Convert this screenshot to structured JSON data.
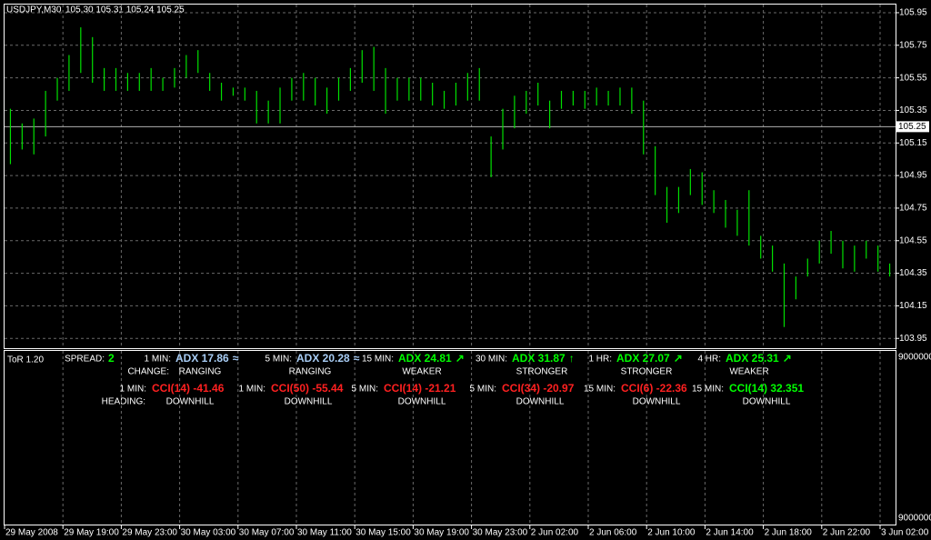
{
  "window": {
    "symbol": "USDJPY,M30",
    "quote": "105.30 105.31 105.24 105.25"
  },
  "chart_data": {
    "type": "bar",
    "color": "#00e000",
    "grid": true,
    "high": [
      105.36,
      105.27,
      105.3,
      105.47,
      105.55,
      105.69,
      105.86,
      105.8,
      105.61,
      105.61,
      105.58,
      105.58,
      105.61,
      105.55,
      105.61,
      105.69,
      105.72,
      105.58,
      105.52,
      105.49,
      105.49,
      105.47,
      105.41,
      105.49,
      105.55,
      105.58,
      105.55,
      105.49,
      105.55,
      105.61,
      105.72,
      105.74,
      105.61,
      105.55,
      105.55,
      105.55,
      105.52,
      105.47,
      105.52,
      105.58,
      105.61,
      105.19,
      105.36,
      105.44,
      105.47,
      105.52,
      105.41,
      105.47,
      105.47,
      105.47,
      105.49,
      105.47,
      105.49,
      105.49,
      105.41,
      105.13,
      104.88,
      104.88,
      104.99,
      104.97,
      104.86,
      104.8,
      104.74,
      104.86,
      104.58,
      104.52,
      104.41,
      104.33,
      104.44,
      104.55,
      104.61,
      104.55,
      104.52,
      104.55,
      104.52,
      104.41
    ],
    "low": [
      105.02,
      105.11,
      105.08,
      105.19,
      105.41,
      105.47,
      105.58,
      105.52,
      105.47,
      105.47,
      105.47,
      105.47,
      105.47,
      105.47,
      105.49,
      105.55,
      105.58,
      105.47,
      105.41,
      105.44,
      105.41,
      105.27,
      105.27,
      105.27,
      105.41,
      105.41,
      105.38,
      105.33,
      105.41,
      105.47,
      105.52,
      105.47,
      105.33,
      105.41,
      105.41,
      105.41,
      105.38,
      105.36,
      105.38,
      105.41,
      105.41,
      104.94,
      105.11,
      105.24,
      105.33,
      105.38,
      105.24,
      105.36,
      105.38,
      105.36,
      105.38,
      105.38,
      105.38,
      105.33,
      105.08,
      104.83,
      104.66,
      104.72,
      104.83,
      104.77,
      104.72,
      104.63,
      104.58,
      104.52,
      104.44,
      104.36,
      104.02,
      104.19,
      104.33,
      104.41,
      104.47,
      104.38,
      104.36,
      104.44,
      104.36,
      104.33
    ],
    "ylim": [
      103.89,
      106.0
    ],
    "yticks": [
      105.95,
      105.75,
      105.55,
      105.35,
      105.15,
      104.95,
      104.75,
      104.55,
      104.35,
      104.15,
      103.95
    ],
    "current_price": 105.25,
    "x_labels": [
      "29 May 2008",
      "29 May 19:00",
      "29 May 23:00",
      "30 May 03:00",
      "30 May 07:00",
      "30 May 11:00",
      "30 May 15:00",
      "30 May 19:00",
      "30 May 23:00",
      "2 Jun 02:00",
      "2 Jun 06:00",
      "2 Jun 10:00",
      "2 Jun 14:00",
      "2 Jun 18:00",
      "2 Jun 22:00",
      "3 Jun 02:00"
    ]
  },
  "indicator": {
    "name": "ToR 1.20",
    "scale_top": "9000000",
    "scale_bottom": "9000000",
    "spread_label": "SPREAD:",
    "spread": "2",
    "change_label": "CHANGE:",
    "heading_label": "HEADING:",
    "adx": [
      {
        "tf": "1 MIN:",
        "value": "ADX 17.86",
        "arrow": "≈",
        "state": "RANGING",
        "color": "#a8cdf5"
      },
      {
        "tf": "5 MIN:",
        "value": "ADX 20.28",
        "arrow": "≈",
        "state": "RANGING",
        "color": "#a8cdf5"
      },
      {
        "tf": "15 MIN:",
        "value": "ADX 24.81",
        "arrow": "↗",
        "state": "WEAKER",
        "color": "#00ff00"
      },
      {
        "tf": "30 MIN:",
        "value": "ADX 31.87",
        "arrow": "↑",
        "state": "STRONGER",
        "color": "#00ff00"
      },
      {
        "tf": "1 HR:",
        "value": "ADX 27.07",
        "arrow": "↗",
        "state": "STRONGER",
        "color": "#00ff00"
      },
      {
        "tf": "4 HR:",
        "value": "ADX 25.31",
        "arrow": "↗",
        "state": "WEAKER",
        "color": "#00ff00"
      }
    ],
    "cci": [
      {
        "tf": "1 MIN:",
        "value": "CCI(14) -41.46",
        "state": "DOWNHILL",
        "color": "#ff2020"
      },
      {
        "tf": "1 MIN:",
        "value": "CCI(50) -55.44",
        "state": "DOWNHILL",
        "color": "#ff2020"
      },
      {
        "tf": "5 MIN:",
        "value": "CCI(14) -21.21",
        "state": "DOWNHILL",
        "color": "#ff2020"
      },
      {
        "tf": "5 MIN:",
        "value": "CCI(34) -20.97",
        "state": "DOWNHILL",
        "color": "#ff2020"
      },
      {
        "tf": "15 MIN:",
        "value": "CCI(6) -22.36",
        "state": "DOWNHILL",
        "color": "#ff2020"
      },
      {
        "tf": "15 MIN:",
        "value": "CCI(14) 32.351",
        "state": "DOWNHILL",
        "color": "#00ff00"
      }
    ]
  }
}
